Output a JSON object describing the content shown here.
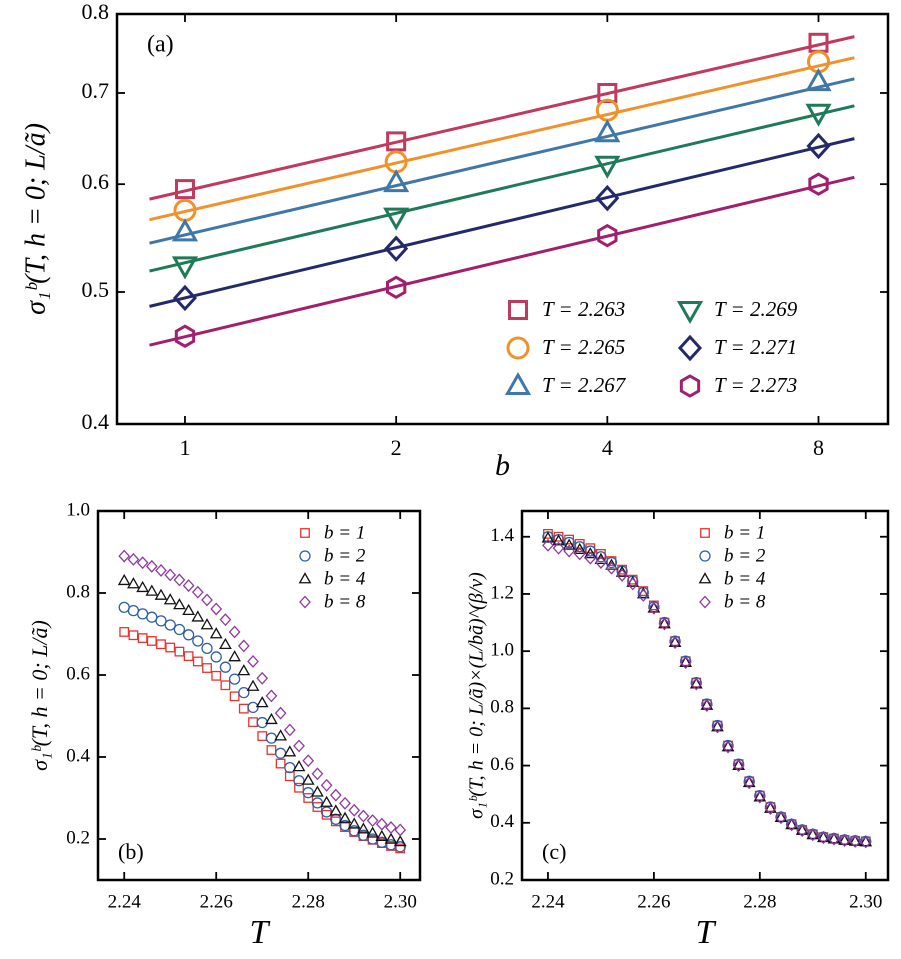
{
  "chart_data": [
    {
      "type": "scatter",
      "annotation": "(a)",
      "annotation_loc": "upper left",
      "xlabel": "b",
      "ylabel": "σ₁ᵇ(T, h = 0; L/ã)",
      "xlog": true,
      "ylog": true,
      "xlim": [
        0.8,
        10.05
      ],
      "ylim": [
        0.4,
        0.8
      ],
      "xticks": [
        1,
        2,
        4,
        8
      ],
      "yticks": [
        0.4,
        0.5,
        0.6,
        0.7,
        0.8
      ],
      "legend_loc": "lower right",
      "legend_ncol": 2,
      "fit_x": [
        0.89,
        9.0
      ],
      "series": [
        {
          "name": "T = 2.263",
          "color": "#c0395e",
          "marker": "square",
          "x": [
            1,
            2,
            4,
            8
          ],
          "values": [
            0.595,
            0.645,
            0.7,
            0.762
          ],
          "fit_values": [
            0.585,
            0.77
          ]
        },
        {
          "name": "T = 2.265",
          "color": "#f0922b",
          "marker": "circle",
          "x": [
            1,
            2,
            4,
            8
          ],
          "values": [
            0.574,
            0.623,
            0.68,
            0.738
          ],
          "fit_values": [
            0.565,
            0.743
          ]
        },
        {
          "name": "T = 2.267",
          "color": "#3f77a8",
          "marker": "triangle-up",
          "x": [
            1,
            2,
            4,
            8
          ],
          "values": [
            0.553,
            0.601,
            0.654,
            0.713
          ],
          "fit_values": [
            0.543,
            0.717
          ]
        },
        {
          "name": "T = 2.269",
          "color": "#1f7a58",
          "marker": "triangle-down",
          "x": [
            1,
            2,
            4,
            8
          ],
          "values": [
            0.523,
            0.568,
            0.62,
            0.677
          ],
          "fit_values": [
            0.518,
            0.685
          ]
        },
        {
          "name": "T = 2.271",
          "color": "#232a6b",
          "marker": "diamond",
          "x": [
            1,
            2,
            4,
            8
          ],
          "values": [
            0.495,
            0.538,
            0.586,
            0.64
          ],
          "fit_values": [
            0.488,
            0.648
          ]
        },
        {
          "name": "T = 2.273",
          "color": "#a0206e",
          "marker": "hexagon",
          "x": [
            1,
            2,
            4,
            8
          ],
          "values": [
            0.464,
            0.504,
            0.55,
            0.6
          ],
          "fit_values": [
            0.457,
            0.607
          ]
        }
      ]
    },
    {
      "type": "scatter",
      "annotation": "(b)",
      "annotation_loc": "lower left",
      "xlabel": "T",
      "ylabel": "σ₁ᵇ(T, h = 0; L/ã)",
      "xlim": [
        2.2343,
        2.3043
      ],
      "ylim": [
        0.1,
        1.0
      ],
      "xticks": [
        2.24,
        2.26,
        2.28,
        {
          "value": 2.3,
          "label": "2.30"
        }
      ],
      "yticks": [
        0.2,
        0.4,
        0.6,
        0.8,
        {
          "value": 1,
          "label": "1.0"
        }
      ],
      "legend_loc": "upper right",
      "legend_ncol": 1,
      "x": [
        2.24,
        2.242,
        2.244,
        2.246,
        2.248,
        2.25,
        2.252,
        2.254,
        2.256,
        2.258,
        2.26,
        2.262,
        2.264,
        2.266,
        2.268,
        2.27,
        2.272,
        2.274,
        2.276,
        2.278,
        2.28,
        2.282,
        2.284,
        2.286,
        2.288,
        2.29,
        2.292,
        2.294,
        2.296,
        2.298,
        2.3
      ],
      "series": [
        {
          "name": "b = 1",
          "color": "#e8322d",
          "marker": "square",
          "values": [
            0.705,
            0.697,
            0.69,
            0.683,
            0.675,
            0.667,
            0.657,
            0.646,
            0.633,
            0.617,
            0.598,
            0.575,
            0.548,
            0.518,
            0.485,
            0.451,
            0.417,
            0.384,
            0.353,
            0.325,
            0.3,
            0.278,
            0.259,
            0.243,
            0.229,
            0.217,
            0.207,
            0.198,
            0.19,
            0.183,
            0.177
          ]
        },
        {
          "name": "b = 2",
          "color": "#2e5fa8",
          "marker": "circle",
          "values": [
            0.765,
            0.757,
            0.749,
            0.741,
            0.732,
            0.722,
            0.711,
            0.698,
            0.683,
            0.665,
            0.644,
            0.619,
            0.59,
            0.557,
            0.521,
            0.484,
            0.446,
            0.409,
            0.374,
            0.342,
            0.313,
            0.288,
            0.266,
            0.248,
            0.233,
            0.22,
            0.209,
            0.2,
            0.192,
            0.186,
            0.181
          ]
        },
        {
          "name": "b = 4",
          "color": "#111111",
          "marker": "triangle-up",
          "values": [
            0.83,
            0.822,
            0.813,
            0.804,
            0.794,
            0.783,
            0.771,
            0.757,
            0.741,
            0.722,
            0.7,
            0.674,
            0.644,
            0.61,
            0.572,
            0.532,
            0.491,
            0.451,
            0.412,
            0.376,
            0.343,
            0.314,
            0.289,
            0.268,
            0.25,
            0.236,
            0.224,
            0.214,
            0.206,
            0.199,
            0.193
          ]
        },
        {
          "name": "b = 8",
          "color": "#8e3a9e",
          "marker": "diamond",
          "values": [
            0.89,
            0.882,
            0.874,
            0.865,
            0.855,
            0.844,
            0.832,
            0.818,
            0.802,
            0.783,
            0.761,
            0.735,
            0.705,
            0.671,
            0.633,
            0.592,
            0.549,
            0.507,
            0.466,
            0.427,
            0.391,
            0.359,
            0.331,
            0.307,
            0.287,
            0.27,
            0.256,
            0.245,
            0.236,
            0.228,
            0.222
          ]
        }
      ]
    },
    {
      "type": "scatter",
      "annotation": "(c)",
      "annotation_loc": "lower left",
      "xlabel": "T",
      "ylabel": "σ₁ᵇ(T, h = 0; L/ã)×(L/bã)^(β/ν)",
      "xlim": [
        2.2351,
        2.3042
      ],
      "ylim": [
        0.2,
        1.49
      ],
      "xticks": [
        2.24,
        2.26,
        2.28,
        {
          "value": 2.3,
          "label": "2.30"
        }
      ],
      "yticks": [
        0.2,
        0.4,
        0.6,
        0.8,
        {
          "value": 1,
          "label": "1.0"
        },
        1.2,
        1.4
      ],
      "legend_loc": "upper right",
      "legend_ncol": 1,
      "x": [
        2.24,
        2.242,
        2.244,
        2.246,
        2.248,
        2.25,
        2.252,
        2.254,
        2.256,
        2.258,
        2.26,
        2.262,
        2.264,
        2.266,
        2.268,
        2.27,
        2.272,
        2.274,
        2.276,
        2.278,
        2.28,
        2.282,
        2.284,
        2.286,
        2.288,
        2.29,
        2.292,
        2.294,
        2.296,
        2.298,
        2.3
      ],
      "series": [
        {
          "name": "b = 1",
          "color": "#e8322d",
          "marker": "square",
          "values": [
            1.41,
            1.4,
            1.39,
            1.375,
            1.36,
            1.34,
            1.315,
            1.285,
            1.25,
            1.21,
            1.16,
            1.1,
            1.035,
            0.965,
            0.89,
            0.815,
            0.74,
            0.67,
            0.605,
            0.545,
            0.495,
            0.455,
            0.42,
            0.395,
            0.375,
            0.36,
            0.35,
            0.345,
            0.34,
            0.337,
            0.335
          ]
        },
        {
          "name": "b = 2",
          "color": "#2e5fa8",
          "marker": "circle",
          "values": [
            1.4,
            1.39,
            1.38,
            1.365,
            1.35,
            1.33,
            1.31,
            1.28,
            1.245,
            1.205,
            1.155,
            1.1,
            1.035,
            0.965,
            0.89,
            0.815,
            0.74,
            0.67,
            0.605,
            0.545,
            0.495,
            0.455,
            0.42,
            0.395,
            0.375,
            0.36,
            0.35,
            0.345,
            0.34,
            0.337,
            0.335
          ]
        },
        {
          "name": "b = 4",
          "color": "#111111",
          "marker": "triangle-up",
          "values": [
            1.395,
            1.385,
            1.37,
            1.355,
            1.34,
            1.32,
            1.3,
            1.275,
            1.24,
            1.2,
            1.15,
            1.095,
            1.03,
            0.96,
            0.885,
            0.81,
            0.735,
            0.665,
            0.6,
            0.54,
            0.49,
            0.45,
            0.418,
            0.393,
            0.373,
            0.358,
            0.348,
            0.343,
            0.338,
            0.335,
            0.333
          ]
        },
        {
          "name": "b = 8",
          "color": "#8e3a9e",
          "marker": "diamond",
          "values": [
            1.37,
            1.36,
            1.35,
            1.34,
            1.325,
            1.31,
            1.29,
            1.265,
            1.235,
            1.195,
            1.15,
            1.095,
            1.03,
            0.96,
            0.885,
            0.81,
            0.735,
            0.665,
            0.6,
            0.54,
            0.49,
            0.45,
            0.418,
            0.393,
            0.373,
            0.358,
            0.348,
            0.343,
            0.338,
            0.335,
            0.333
          ]
        }
      ]
    }
  ]
}
